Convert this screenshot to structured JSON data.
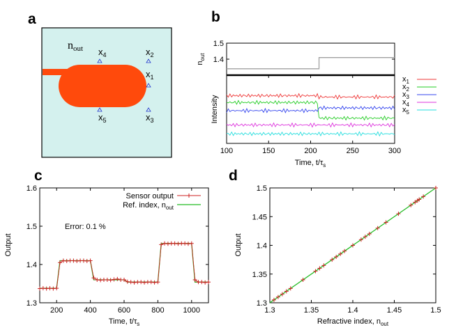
{
  "panels": {
    "a": {
      "label": "a",
      "n_label": "n",
      "n_sub": "out",
      "positions": [
        {
          "name": "x",
          "sub": "4"
        },
        {
          "name": "x",
          "sub": "2"
        },
        {
          "name": "x",
          "sub": "1"
        },
        {
          "name": "x",
          "sub": "5"
        },
        {
          "name": "x",
          "sub": "3"
        }
      ],
      "colors": {
        "background": "#d4f1ee",
        "waveguide": "#ff4a0c",
        "marker": "#2233cc"
      }
    },
    "b": {
      "label": "b"
    },
    "c": {
      "label": "c",
      "annotation": "Error: 0.1 %"
    },
    "d": {
      "label": "d"
    }
  },
  "chart_data": [
    {
      "id": "b-top",
      "type": "line",
      "title": "",
      "xlabel": "",
      "ylabel": "n",
      "ylabel_sub": "out",
      "xlim": [
        100,
        300
      ],
      "ylim": [
        1.3,
        1.5
      ],
      "yticks": [
        1.3,
        1.4,
        1.5
      ],
      "grid": false,
      "series": [
        {
          "x": [
            100,
            210,
            210,
            300
          ],
          "values": [
            1.34,
            1.34,
            1.41,
            1.41
          ],
          "color": "#a0a0a0"
        }
      ]
    },
    {
      "id": "b-bottom",
      "type": "line",
      "title": "",
      "xlabel": "Time, t/τ",
      "xlabel_sub": "s",
      "ylabel": "Intensity",
      "xlim": [
        100,
        300
      ],
      "xticks": [
        100,
        150,
        200,
        250,
        300
      ],
      "y_tick_labels": false,
      "legend": "right",
      "step_at": 210,
      "series": [
        {
          "name": "x",
          "sub": "1",
          "color": "#ee3333",
          "before": 0.7,
          "after": 0.68
        },
        {
          "name": "x",
          "sub": "2",
          "color": "#22cc22",
          "before": 0.6,
          "after": 0.37
        },
        {
          "name": "x",
          "sub": "3",
          "color": "#3344ee",
          "before": 0.48,
          "after": 0.52
        },
        {
          "name": "x",
          "sub": "4",
          "color": "#dd33dd",
          "before": 0.27,
          "after": 0.27
        },
        {
          "name": "x",
          "sub": "5",
          "color": "#22dddd",
          "before": 0.14,
          "after": 0.14
        }
      ]
    },
    {
      "id": "c",
      "type": "line",
      "title": "",
      "xlabel": "Time, t/τ",
      "xlabel_sub": "s",
      "ylabel": "Output",
      "xlim": [
        100,
        1100
      ],
      "ylim": [
        1.3,
        1.6
      ],
      "xticks": [
        200,
        400,
        600,
        800,
        1000
      ],
      "yticks": [
        1.3,
        1.4,
        1.5,
        1.6
      ],
      "legend": "top-right",
      "series": [
        {
          "name": "Ref. index, n",
          "name_sub": "out",
          "color": "#22bb22",
          "x": [
            100,
            200,
            220,
            400,
            420,
            600,
            620,
            800,
            820,
            1000,
            1020,
            1100
          ],
          "values": [
            1.338,
            1.338,
            1.41,
            1.41,
            1.36,
            1.36,
            1.354,
            1.354,
            1.455,
            1.455,
            1.354,
            1.354
          ]
        },
        {
          "name": "Sensor output",
          "color": "#cc2222",
          "x": [
            100,
            120,
            140,
            160,
            180,
            200,
            220,
            240,
            260,
            280,
            300,
            320,
            340,
            360,
            380,
            400,
            420,
            440,
            460,
            480,
            500,
            520,
            540,
            560,
            580,
            600,
            620,
            640,
            660,
            680,
            700,
            720,
            740,
            760,
            780,
            800,
            820,
            840,
            860,
            880,
            900,
            920,
            940,
            960,
            980,
            1000,
            1020,
            1040,
            1060,
            1080,
            1100
          ],
          "values": [
            1.337,
            1.338,
            1.337,
            1.338,
            1.337,
            1.338,
            1.405,
            1.41,
            1.409,
            1.41,
            1.41,
            1.409,
            1.41,
            1.41,
            1.409,
            1.41,
            1.365,
            1.36,
            1.359,
            1.36,
            1.36,
            1.359,
            1.361,
            1.362,
            1.36,
            1.36,
            1.355,
            1.354,
            1.353,
            1.354,
            1.354,
            1.353,
            1.354,
            1.354,
            1.353,
            1.354,
            1.452,
            1.455,
            1.454,
            1.455,
            1.455,
            1.454,
            1.455,
            1.455,
            1.454,
            1.455,
            1.36,
            1.354,
            1.354,
            1.353,
            1.354
          ]
        }
      ]
    },
    {
      "id": "d",
      "type": "scatter",
      "title": "",
      "xlabel": "Refractive index, n",
      "xlabel_sub": "out",
      "ylabel": "Output",
      "xlim": [
        1.3,
        1.5
      ],
      "ylim": [
        1.3,
        1.5
      ],
      "xticks": [
        1.3,
        1.35,
        1.4,
        1.45,
        1.5
      ],
      "yticks": [
        1.3,
        1.35,
        1.4,
        1.45,
        1.5
      ],
      "line": {
        "x": [
          1.3,
          1.5
        ],
        "values": [
          1.3,
          1.5
        ],
        "color": "#22bb22"
      },
      "points": {
        "color": "#cc2222",
        "x": [
          1.305,
          1.31,
          1.315,
          1.32,
          1.325,
          1.34,
          1.355,
          1.36,
          1.365,
          1.375,
          1.38,
          1.385,
          1.39,
          1.4,
          1.41,
          1.415,
          1.42,
          1.43,
          1.44,
          1.455,
          1.47,
          1.475,
          1.478,
          1.48,
          1.485,
          1.5
        ],
        "values": [
          1.305,
          1.31,
          1.315,
          1.32,
          1.325,
          1.34,
          1.355,
          1.36,
          1.365,
          1.375,
          1.38,
          1.385,
          1.39,
          1.4,
          1.41,
          1.415,
          1.42,
          1.43,
          1.44,
          1.455,
          1.47,
          1.475,
          1.478,
          1.48,
          1.485,
          1.5
        ]
      }
    }
  ]
}
